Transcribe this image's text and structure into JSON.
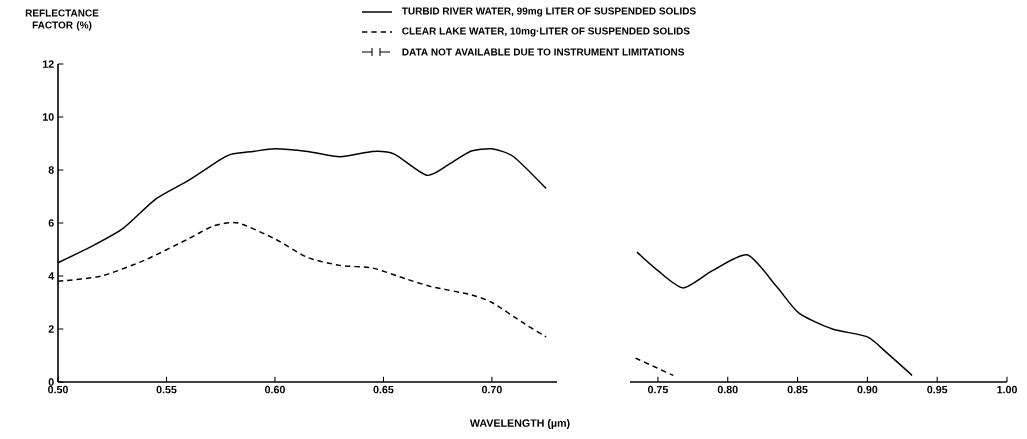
{
  "chart_data": [
    {
      "type": "line",
      "xlabel": "WAVELENGTH (µm)",
      "ylabel": "REFLECTANCE FACTOR (%)",
      "xlim": [
        0.5,
        0.73
      ],
      "ylim": [
        0,
        12
      ],
      "xticks": [
        {
          "value": 0.5,
          "label": "0.50"
        },
        {
          "value": 0.55,
          "label": "0.55"
        },
        {
          "value": 0.6,
          "label": "0.60"
        },
        {
          "value": 0.65,
          "label": "0.65"
        },
        {
          "value": 0.7,
          "label": "0.70"
        }
      ],
      "yticks": [
        0,
        2,
        4,
        6,
        8,
        10,
        12
      ],
      "legend": "top",
      "annotations": [
        "DATA NOT AVAILABLE DUE TO INSTRUMENT LIMITATIONS"
      ],
      "series": [
        {
          "name": "TURBID RIVER WATER, 99mg LITER OF SUSPENDED SOLIDS",
          "color": "#000000",
          "line_style": "solid",
          "x": [
            0.5,
            0.515,
            0.53,
            0.545,
            0.56,
            0.575,
            0.58,
            0.59,
            0.6,
            0.615,
            0.63,
            0.645,
            0.655,
            0.67,
            0.68,
            0.69,
            0.7,
            0.71,
            0.725
          ],
          "values": [
            4.5,
            5.1,
            5.8,
            6.9,
            7.6,
            8.4,
            8.6,
            8.7,
            8.8,
            8.7,
            8.5,
            8.7,
            8.6,
            7.8,
            8.2,
            8.7,
            8.8,
            8.5,
            7.3
          ]
        },
        {
          "name": "CLEAR LAKE WATER, 10mg·LITER OF SUSPENDED SOLIDS",
          "color": "#000000",
          "line_style": "dashed",
          "x": [
            0.5,
            0.52,
            0.54,
            0.56,
            0.572,
            0.583,
            0.6,
            0.615,
            0.63,
            0.645,
            0.66,
            0.672,
            0.69,
            0.7,
            0.715,
            0.725
          ],
          "values": [
            3.8,
            4.0,
            4.6,
            5.4,
            5.9,
            6.0,
            5.4,
            4.7,
            4.4,
            4.3,
            3.9,
            3.6,
            3.3,
            3.0,
            2.2,
            1.7
          ]
        }
      ]
    },
    {
      "type": "line",
      "xlim": [
        0.73,
        1.0
      ],
      "ylim": [
        0,
        12
      ],
      "tick_labels": "x",
      "xticks": [
        {
          "value": 0.75,
          "label": "0.75"
        },
        {
          "value": 0.8,
          "label": "0.80"
        },
        {
          "value": 0.85,
          "label": "0.85"
        },
        {
          "value": 0.9,
          "label": "0.90"
        },
        {
          "value": 0.95,
          "label": "0.95"
        },
        {
          "value": 1.0,
          "label": "1.00"
        }
      ],
      "series": [
        {
          "color": "#000000",
          "line_style": "solid",
          "x": [
            0.735,
            0.75,
            0.768,
            0.789,
            0.814,
            0.835,
            0.851,
            0.875,
            0.9,
            0.915,
            0.932
          ],
          "values": [
            4.9,
            4.2,
            3.55,
            4.2,
            4.8,
            3.6,
            2.6,
            2.0,
            1.7,
            1.05,
            0.25
          ]
        },
        {
          "color": "#000000",
          "line_style": "dashed",
          "x": [
            0.734,
            0.761
          ],
          "values": [
            0.9,
            0.25
          ]
        }
      ]
    }
  ]
}
